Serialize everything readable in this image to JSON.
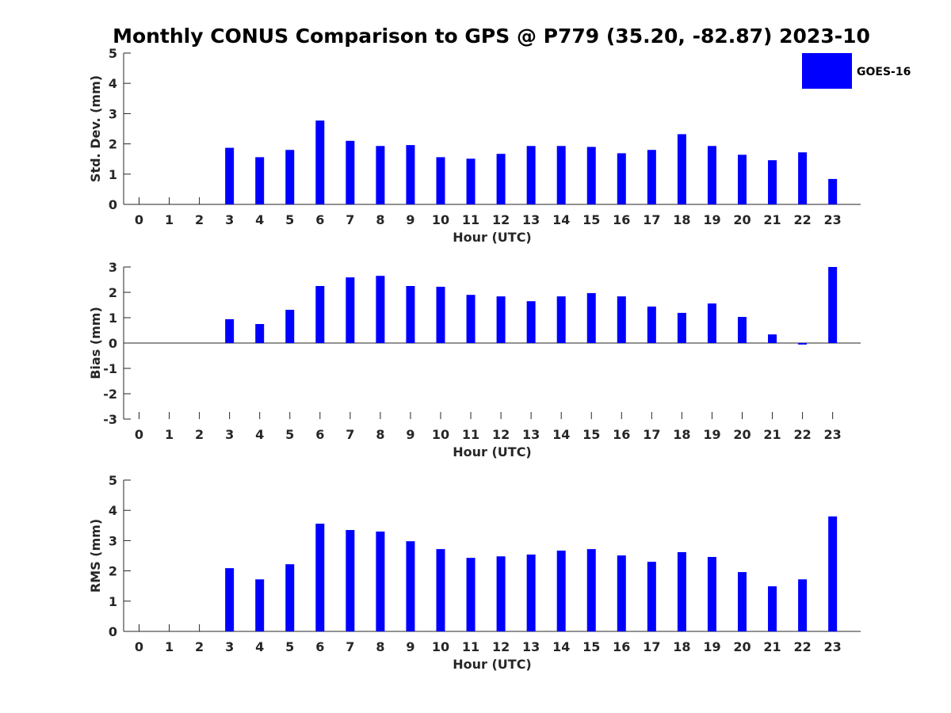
{
  "chart_data": {
    "title": "Monthly CONUS Comparison to GPS @ P779 (35.20, -82.87) 2023-10",
    "type": "bar",
    "legend": {
      "placement": "top-right",
      "entries": [
        {
          "name": "GOES-16",
          "color": "#0000ff"
        }
      ]
    },
    "grid": false,
    "categories": [
      "0",
      "1",
      "2",
      "3",
      "4",
      "5",
      "6",
      "7",
      "8",
      "9",
      "10",
      "11",
      "12",
      "13",
      "14",
      "15",
      "16",
      "17",
      "18",
      "19",
      "20",
      "21",
      "22",
      "23"
    ],
    "panels": [
      {
        "ylabel": "Std. Dev. (mm)",
        "xlabel": "Hour (UTC)",
        "ylim": [
          0,
          5
        ],
        "yticks": [
          "0",
          "1",
          "2",
          "3",
          "4",
          "5"
        ],
        "series": [
          {
            "name": "GOES-16",
            "color": "#0000ff",
            "values": [
              null,
              null,
              null,
              1.87,
              1.56,
              1.8,
              2.77,
              2.1,
              1.93,
              1.96,
              1.56,
              1.51,
              1.67,
              1.93,
              1.93,
              1.9,
              1.69,
              1.8,
              2.32,
              1.93,
              1.64,
              1.46,
              1.72,
              0.84
            ]
          }
        ]
      },
      {
        "ylabel": "Bias (mm)",
        "xlabel": "Hour (UTC)",
        "ylim": [
          -3,
          3
        ],
        "yticks": [
          "-3",
          "-2",
          "-1",
          "0",
          "1",
          "2",
          "3"
        ],
        "series": [
          {
            "name": "GOES-16",
            "color": "#0000ff",
            "values": [
              null,
              null,
              null,
              0.94,
              0.75,
              1.31,
              2.25,
              2.59,
              2.65,
              2.25,
              2.22,
              1.9,
              1.84,
              1.65,
              1.84,
              1.97,
              1.84,
              1.44,
              1.19,
              1.56,
              1.03,
              0.34,
              -0.06,
              3.0
            ]
          }
        ]
      },
      {
        "ylabel": "RMS (mm)",
        "xlabel": "Hour (UTC)",
        "ylim": [
          0,
          5
        ],
        "yticks": [
          "0",
          "1",
          "2",
          "3",
          "4",
          "5"
        ],
        "series": [
          {
            "name": "GOES-16",
            "color": "#0000ff",
            "values": [
              null,
              null,
              null,
              2.09,
              1.72,
              2.22,
              3.56,
              3.35,
              3.3,
              2.98,
              2.72,
              2.43,
              2.48,
              2.54,
              2.67,
              2.72,
              2.51,
              2.3,
              2.62,
              2.46,
              1.96,
              1.49,
              1.72,
              3.8
            ]
          }
        ]
      }
    ]
  }
}
